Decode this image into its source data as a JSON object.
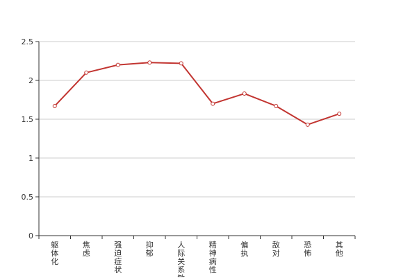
{
  "chart_data": {
    "type": "line",
    "categories": [
      "躯体化",
      "焦虑",
      "强迫症状",
      "抑郁",
      "人际关系敏感",
      "精神病性",
      "偏执",
      "敌对",
      "恐怖",
      "其他"
    ],
    "series": [
      {
        "values": [
          1.67,
          2.1,
          2.2,
          2.23,
          2.22,
          1.7,
          1.83,
          1.67,
          1.43,
          1.57
        ]
      }
    ],
    "ylim": [
      0,
      2.5
    ],
    "yticks": [
      "0",
      "0.5",
      "1",
      "1.5",
      "2",
      "2.5"
    ],
    "grid": true,
    "legend": "none",
    "colors": {
      "line": "#c23531",
      "marker_fill": "#ffffff",
      "grid": "#cccccc",
      "axis": "#333333"
    }
  }
}
